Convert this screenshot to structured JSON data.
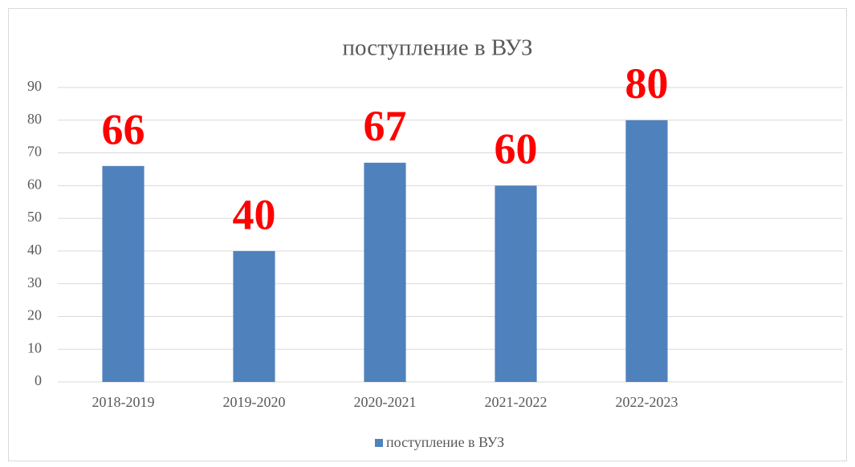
{
  "chart_data": {
    "type": "bar",
    "title": "поступление в ВУЗ",
    "categories": [
      "2018-2019",
      "2019-2020",
      "2020-2021",
      "2021-2022",
      "2022-2023",
      null
    ],
    "series": [
      {
        "name": "поступление в ВУЗ",
        "color": "#4f81bd",
        "values": [
          66,
          40,
          67,
          60,
          80,
          null
        ]
      }
    ],
    "data_label_color": "#ff0000",
    "ylim": [
      0,
      90
    ],
    "yticks": [
      0,
      10,
      20,
      30,
      40,
      50,
      60,
      70,
      80,
      90
    ],
    "grid": true,
    "legend": "bottom"
  }
}
